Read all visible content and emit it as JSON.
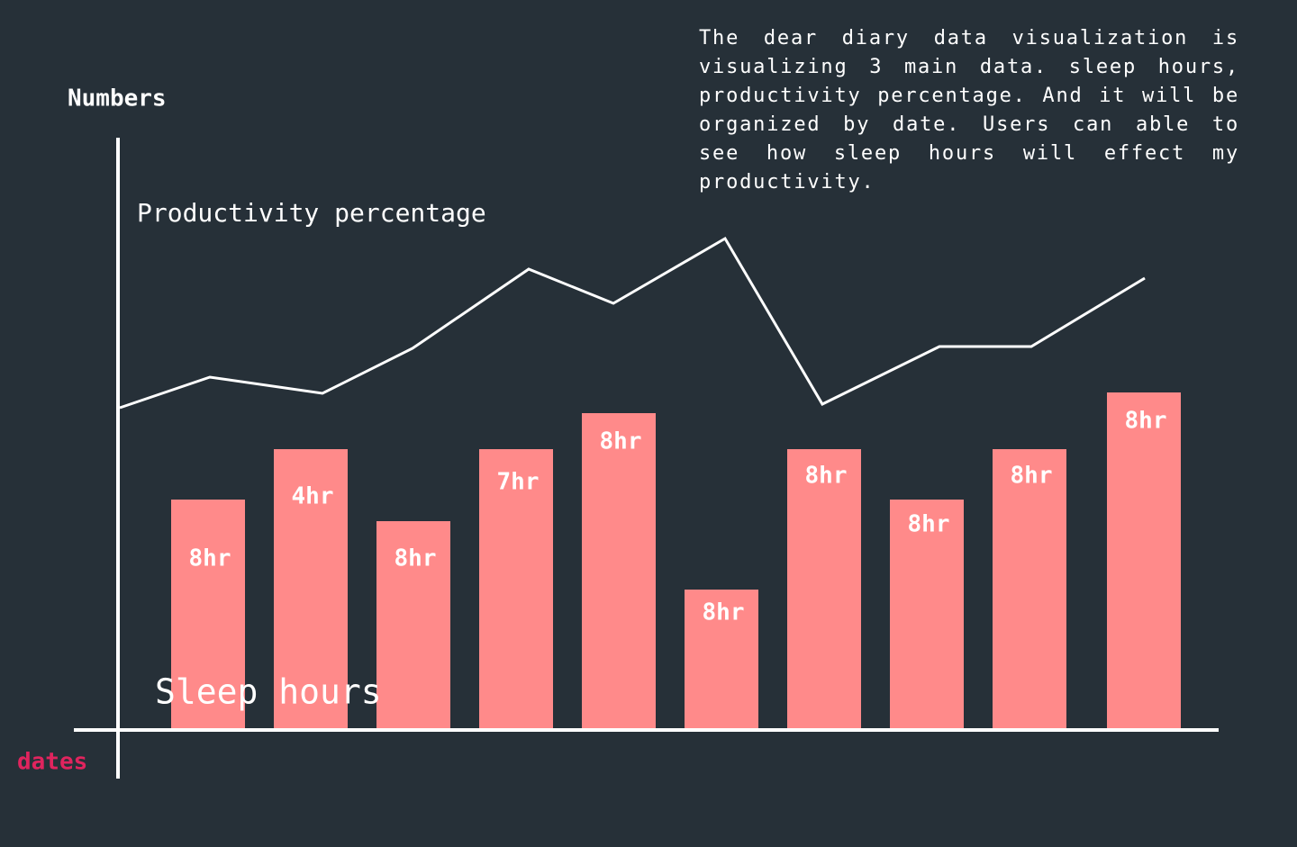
{
  "title": "Numbers",
  "x_axis_label": "dates",
  "line_label": "Productivity percentage",
  "bar_label": "Sleep hours",
  "description": "The dear diary data visualization is visualizing 3 main data. sleep hours, productivity percentage. And it will be organized by date. Users can able to see how sleep hours will effect my productivity.",
  "bars": [
    {
      "label": "8hr"
    },
    {
      "label": "4hr"
    },
    {
      "label": "8hr"
    },
    {
      "label": "7hr"
    },
    {
      "label": "8hr"
    },
    {
      "label": "8hr"
    },
    {
      "label": "8hr"
    },
    {
      "label": "8hr"
    },
    {
      "label": "8hr"
    },
    {
      "label": "8hr"
    }
  ]
}
